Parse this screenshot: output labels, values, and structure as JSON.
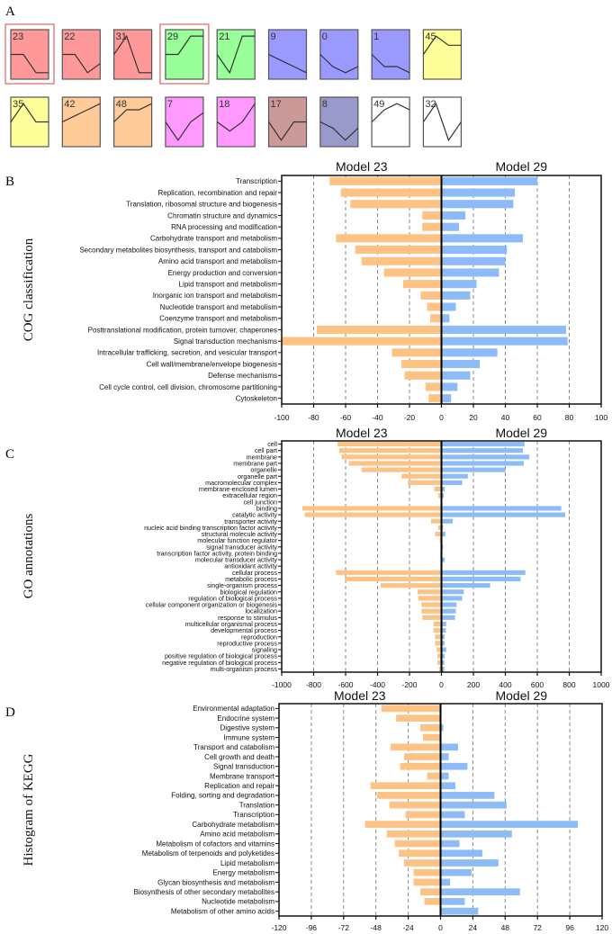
{
  "panel_labels": {
    "a": "A",
    "b": "B",
    "c": "C",
    "d": "D"
  },
  "profiles": {
    "items": [
      {
        "id": "23",
        "color": "#ff9999",
        "values": [
          0,
          0,
          -2,
          -2
        ],
        "highlighted": true
      },
      {
        "id": "22",
        "color": "#ff9999",
        "values": [
          0,
          0,
          -2,
          -1
        ],
        "highlighted": false
      },
      {
        "id": "31",
        "color": "#ff9999",
        "values": [
          0,
          2,
          -2,
          -2
        ],
        "highlighted": false
      },
      {
        "id": "29",
        "color": "#99ff99",
        "values": [
          0,
          0,
          2,
          2
        ],
        "highlighted": true
      },
      {
        "id": "21",
        "color": "#99ff99",
        "values": [
          0,
          -2,
          2,
          2
        ],
        "highlighted": false
      },
      {
        "id": "9",
        "color": "#9999ff",
        "values": [
          0,
          -0.67,
          -1.33,
          -2
        ],
        "highlighted": false
      },
      {
        "id": "0",
        "color": "#9999ff",
        "values": [
          0,
          -1.33,
          -2,
          -1.33
        ],
        "highlighted": false
      },
      {
        "id": "1",
        "color": "#9999ff",
        "values": [
          0,
          -1.33,
          -1.33,
          -2
        ],
        "highlighted": false
      },
      {
        "id": "45",
        "color": "#ffff99",
        "values": [
          0,
          2,
          1,
          1
        ],
        "highlighted": false
      },
      {
        "id": "35",
        "color": "#ffff99",
        "values": [
          0,
          2,
          0,
          0
        ],
        "highlighted": false
      },
      {
        "id": "42",
        "color": "#ffcc99",
        "values": [
          0,
          0.67,
          1.33,
          2
        ],
        "highlighted": false
      },
      {
        "id": "48",
        "color": "#ffcc99",
        "values": [
          0,
          1.33,
          1.33,
          2
        ],
        "highlighted": false
      },
      {
        "id": "7",
        "color": "#ff99ff",
        "values": [
          0,
          -2,
          0,
          1
        ],
        "highlighted": false
      },
      {
        "id": "18",
        "color": "#ff99ff",
        "values": [
          0,
          -1,
          0,
          2
        ],
        "highlighted": false
      },
      {
        "id": "17",
        "color": "#cc9999",
        "values": [
          0,
          -2,
          0,
          0
        ],
        "highlighted": false
      },
      {
        "id": "8",
        "color": "#9999cc",
        "values": [
          0,
          -0.67,
          -2,
          -0.67
        ],
        "highlighted": false
      },
      {
        "id": "49",
        "color": "#ffffff",
        "values": [
          0,
          1.33,
          2,
          1.33
        ],
        "highlighted": false
      },
      {
        "id": "32",
        "color": "#ffffff",
        "values": [
          0,
          2,
          -2,
          0
        ],
        "highlighted": false
      }
    ]
  },
  "colors": {
    "model23": "#ffc285",
    "model29": "#8dbbf7",
    "highlight": "#e07070"
  },
  "chart_data": [
    {
      "type": "bar",
      "orientation": "horizontal-diverging",
      "title": "COG classification",
      "series_names": [
        "Model 23",
        "Model 29"
      ],
      "xlim": [
        -100,
        100
      ],
      "xticks": [
        -100,
        -80,
        -60,
        -40,
        -20,
        0,
        20,
        40,
        60,
        80,
        100
      ],
      "xtick_labels": [
        "-100",
        "-80",
        "-60",
        "-40",
        "-20",
        "0",
        "20",
        "40",
        "60",
        "80",
        "100"
      ],
      "grid": "dashed-vertical",
      "categories": [
        "Transcription",
        "Replication, recombination and repair",
        "Translation, ribosomal structure and biogenesis",
        "Chromatin structure and dynamics",
        "RNA processing and modification",
        "Carbohydrate transport and metabolism",
        "Secondary metabolites biosynthesis, transport and catabolism",
        "Amino acid transport and metabolism",
        "Energy production and conversion",
        "Lipid transport and metabolism",
        "Inorganic ion transport and metabolism",
        "Nucleotide transport and metabolism",
        "Coenzyme transport and metabolism",
        "Posttranslational modification, protein turnover, chaperones",
        "Signal transduction mechanisms",
        "Intracellular trafficking, secretion, and vesicular transport",
        "Cell wall/membrane/envelope biogenesis",
        "Defense mechanisms",
        "Cell cycle control, cell division, chromosome partitioning",
        "Cytoskeleton"
      ],
      "series": [
        {
          "name": "Model 23",
          "values": [
            -70,
            -63,
            -57,
            -12,
            -12,
            -66,
            -54,
            -50,
            -36,
            -24,
            -13,
            -9,
            -7,
            -78,
            -100,
            -31,
            -25,
            -23,
            -10,
            -8
          ]
        },
        {
          "name": "Model 29",
          "values": [
            60,
            46,
            45,
            15,
            11,
            51,
            41,
            40,
            36,
            22,
            18,
            9,
            5,
            78,
            79,
            35,
            24,
            18,
            10,
            6
          ]
        }
      ]
    },
    {
      "type": "bar",
      "orientation": "horizontal-diverging",
      "title": "GO annotations",
      "series_names": [
        "Model 23",
        "Model 29"
      ],
      "xlim": [
        -1000,
        1000
      ],
      "xticks": [
        -1000,
        -800,
        -600,
        -400,
        -200,
        0,
        200,
        400,
        600,
        800,
        1000
      ],
      "xtick_labels": [
        "-1000",
        "-800",
        "-600",
        "-400",
        "-200",
        "0",
        "200",
        "400",
        "600",
        "800",
        "1000"
      ],
      "grid": "dashed-vertical",
      "categories": [
        "cell",
        "cell part",
        "membrane",
        "membrane part",
        "organelle",
        "organelle part",
        "macromolecular complex",
        "membrane-enclosed lumen",
        "extracellular region",
        "cell junction",
        "binding",
        "catalytic activity",
        "transporter activity",
        "nucleic acid binding transcription factor activity",
        "structural molecule activity",
        "molecular function regulator",
        "signal transducer activity",
        "transcription factor activity, protein binding",
        "molecular transducer activity",
        "antioxidant activity",
        "cellular process",
        "metabolic process",
        "single-organism process",
        "biological regulation",
        "regulation of biological process",
        "cellular component organization or biogenesis",
        "localization",
        "response to stimulus",
        "multicellular organismal process",
        "developmental process",
        "reproduction",
        "reproductive process",
        "signaling",
        "positive regulation of biological process",
        "negative regulation of biological process",
        "multi-organism process"
      ],
      "series": [
        {
          "name": "Model 23",
          "values": [
            -650,
            -640,
            -625,
            -580,
            -500,
            -250,
            -210,
            -45,
            -20,
            -5,
            -870,
            -855,
            -65,
            -20,
            -40,
            -10,
            -5,
            -5,
            -2,
            0,
            -660,
            -605,
            -380,
            -150,
            -145,
            -125,
            -125,
            -120,
            -50,
            -50,
            -40,
            -40,
            -30,
            -25,
            -25,
            -15
          ]
        },
        {
          "name": "Model 29",
          "values": [
            520,
            510,
            550,
            515,
            400,
            165,
            130,
            20,
            15,
            0,
            750,
            775,
            70,
            10,
            25,
            0,
            10,
            0,
            20,
            5,
            525,
            495,
            305,
            140,
            130,
            95,
            90,
            85,
            30,
            28,
            20,
            20,
            30,
            20,
            18,
            18
          ]
        }
      ]
    },
    {
      "type": "bar",
      "orientation": "horizontal-diverging",
      "title": "Histogram of KEGG",
      "series_names": [
        "Model 23",
        "Model 29"
      ],
      "xlim": [
        -120,
        120
      ],
      "xticks": [
        -120,
        -96,
        -72,
        -48,
        -24,
        0,
        24,
        48,
        72,
        96,
        120
      ],
      "xtick_labels": [
        "-120",
        "-96",
        "-72",
        "-48",
        "-24",
        "0",
        "24",
        "48",
        "72",
        "96",
        "120"
      ],
      "grid": "dashed-vertical",
      "categories": [
        "Environmental adaptation",
        "Endocrine system",
        "Digestive system",
        "Immune system",
        "Transport and catabolism",
        "Cell growth and death",
        "Signal transduction",
        "Membrane transport",
        "Replication and repair",
        "Folding, sorting and degradation",
        "Translation",
        "Transcription",
        "Carbohydrate metabolism",
        "Amino acid metabolism",
        "Metabolism of cofactors and vitamins",
        "Metabolism of terpenoids and polyketides",
        "Lipid metabolism",
        "Energy metabolism",
        "Glycan biosynthesis and metabolism",
        "Biosynthesis of other secondary metabolites",
        "Nucleotide metabolism",
        "Metabolism of other amino acids"
      ],
      "series": [
        {
          "name": "Model 23",
          "values": [
            -44,
            -33,
            -15,
            -13,
            -37,
            -27,
            -30,
            -10,
            -52,
            -47,
            -38,
            -26,
            -56,
            -40,
            -34,
            -31,
            -27,
            -20,
            -20,
            -15,
            -12,
            0
          ]
        },
        {
          "name": "Model 29",
          "values": [
            0,
            0,
            2,
            0,
            13,
            6,
            20,
            6,
            11,
            40,
            49,
            18,
            102,
            53,
            14,
            31,
            43,
            23,
            7,
            59,
            18,
            28
          ]
        }
      ]
    }
  ]
}
